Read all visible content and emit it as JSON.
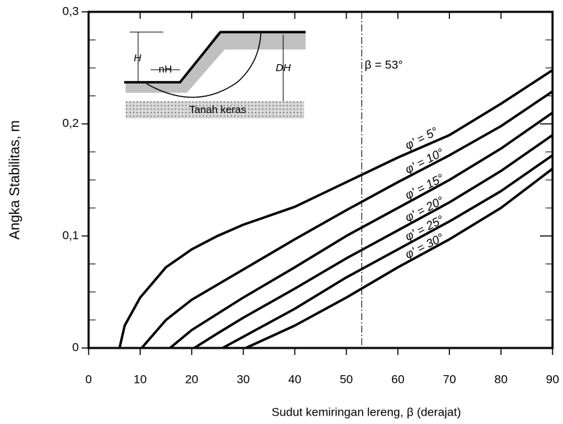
{
  "chart_data": {
    "type": "line",
    "xlabel": "Sudut kemiringan lereng, β (derajat)",
    "ylabel": "Angka Stabilitas, m",
    "xlim": [
      0,
      90
    ],
    "ylim": [
      0,
      0.3
    ],
    "xticks": [
      0,
      10,
      20,
      30,
      40,
      50,
      60,
      70,
      80,
      90
    ],
    "yticks": [
      {
        "value": 0,
        "label": "0"
      },
      {
        "value": 0.1,
        "label": "0,1"
      },
      {
        "value": 0.2,
        "label": "0,2"
      },
      {
        "value": 0.3,
        "label": "0,3"
      }
    ],
    "yminorticks": [
      0.025,
      0.05,
      0.075,
      0.125,
      0.15,
      0.175,
      0.225,
      0.25,
      0.275
    ],
    "color": "#000000",
    "series": [
      {
        "name": "φ' = 5°",
        "x": [
          6,
          7,
          10,
          15,
          20,
          25,
          30,
          40,
          50,
          60,
          70,
          80,
          90
        ],
        "values": [
          0,
          0.02,
          0.045,
          0.072,
          0.088,
          0.1,
          0.11,
          0.126,
          0.148,
          0.17,
          0.19,
          0.218,
          0.248
        ]
      },
      {
        "name": "φ' = 10°",
        "x": [
          10.3,
          15,
          20,
          30,
          40,
          50,
          60,
          70,
          80,
          90
        ],
        "values": [
          0,
          0.025,
          0.043,
          0.07,
          0.097,
          0.123,
          0.148,
          0.172,
          0.198,
          0.229
        ]
      },
      {
        "name": "φ' = 15°",
        "x": [
          15.8,
          20,
          30,
          40,
          50,
          60,
          70,
          80,
          90
        ],
        "values": [
          0,
          0.016,
          0.045,
          0.072,
          0.1,
          0.125,
          0.15,
          0.178,
          0.21
        ]
      },
      {
        "name": "φ' = 20°",
        "x": [
          20.5,
          25,
          30,
          40,
          50,
          60,
          70,
          80,
          90
        ],
        "values": [
          0,
          0.013,
          0.027,
          0.053,
          0.08,
          0.105,
          0.13,
          0.158,
          0.19
        ]
      },
      {
        "name": "φ' = 25°",
        "x": [
          26,
          30,
          40,
          50,
          60,
          70,
          80,
          90
        ],
        "values": [
          0,
          0.01,
          0.035,
          0.063,
          0.088,
          0.113,
          0.14,
          0.172
        ]
      },
      {
        "name": "φ' = 30°",
        "x": [
          30.5,
          40,
          50,
          60,
          70,
          80,
          90
        ],
        "values": [
          0,
          0.02,
          0.045,
          0.072,
          0.097,
          0.125,
          0.16
        ]
      }
    ],
    "vline": {
      "x": 53,
      "label": "β = 53°"
    },
    "inset_labels": {
      "H": "H",
      "nH": "nH",
      "DH": "DH",
      "hard_layer": "Tanah keras"
    }
  }
}
